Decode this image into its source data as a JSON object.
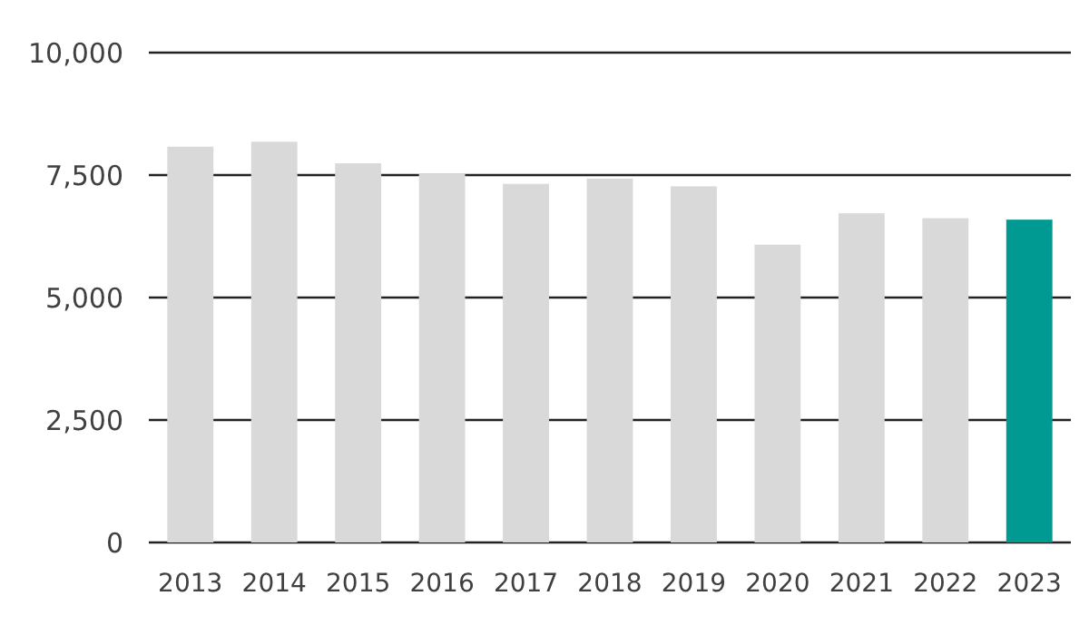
{
  "chart_data": {
    "type": "bar",
    "categories": [
      "2013",
      "2014",
      "2015",
      "2016",
      "2017",
      "2018",
      "2019",
      "2020",
      "2021",
      "2022",
      "2023"
    ],
    "values": [
      8080,
      8180,
      7740,
      7530,
      7320,
      7430,
      7270,
      6080,
      6720,
      6620,
      6590
    ],
    "colors": [
      "#d9d9d9",
      "#d9d9d9",
      "#d9d9d9",
      "#d9d9d9",
      "#d9d9d9",
      "#d9d9d9",
      "#d9d9d9",
      "#d9d9d9",
      "#d9d9d9",
      "#d9d9d9",
      "#009a93"
    ],
    "ylim": [
      0,
      10000
    ],
    "yticks": [
      {
        "value": 0,
        "label": "0"
      },
      {
        "value": 2500,
        "label": "2,500"
      },
      {
        "value": 5000,
        "label": "5,000"
      },
      {
        "value": 7500,
        "label": "7,500"
      },
      {
        "value": 10000,
        "label": "10,000"
      }
    ],
    "grid": "y"
  }
}
